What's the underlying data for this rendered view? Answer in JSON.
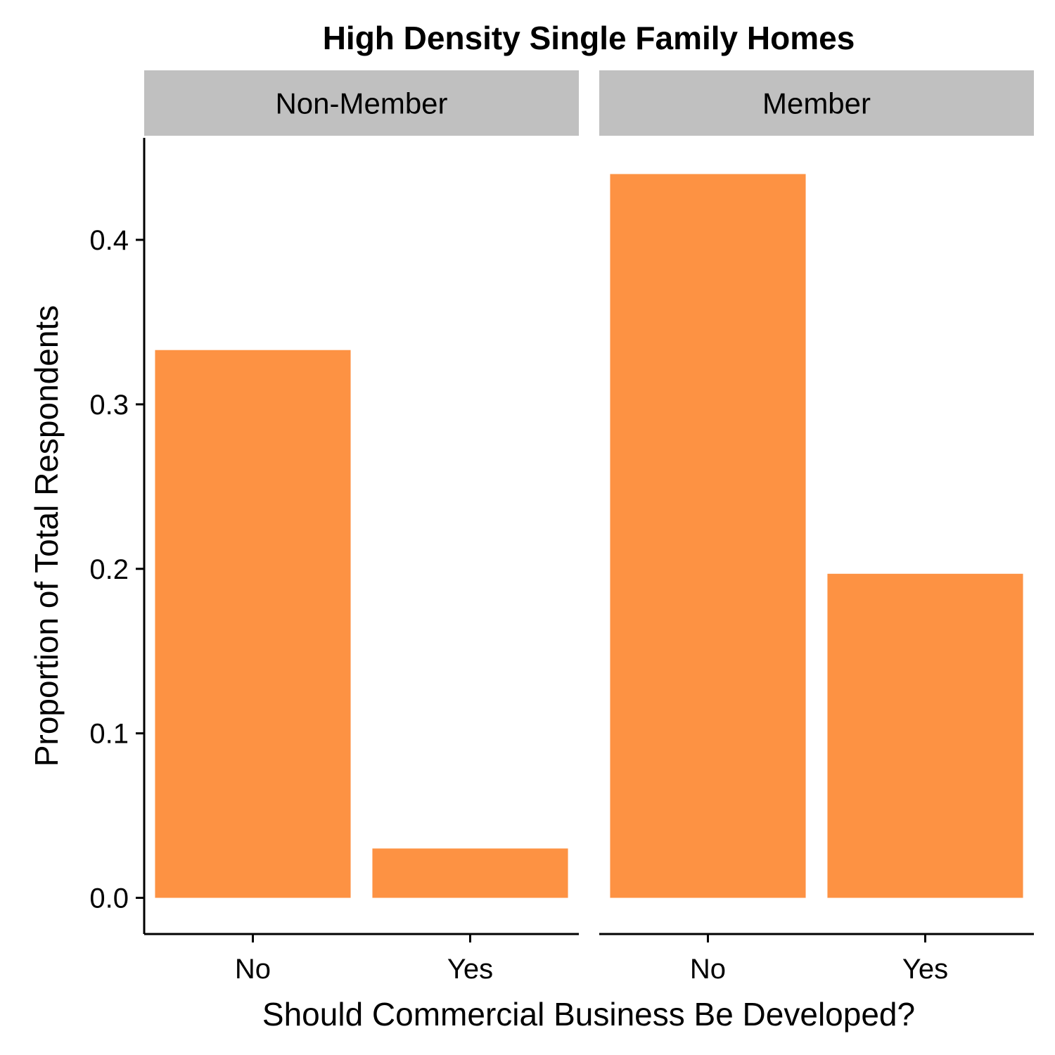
{
  "chart_data": {
    "type": "bar",
    "title": "High Density Single Family Homes",
    "xlabel": "Should Commercial Business Be Developed?",
    "ylabel": "Proportion of Total Respondents",
    "categories": [
      "No",
      "Yes"
    ],
    "facets": [
      {
        "name": "Non-Member",
        "values": [
          0.333,
          0.03
        ]
      },
      {
        "name": "Member",
        "values": [
          0.44,
          0.197
        ]
      }
    ],
    "ylim": [
      -0.022,
      0.462
    ],
    "yticks": [
      0.0,
      0.1,
      0.2,
      0.3,
      0.4
    ],
    "ytick_labels": [
      "0.0",
      "0.1",
      "0.2",
      "0.3",
      "0.4"
    ],
    "grid": false,
    "legend": "none"
  },
  "colors": {
    "bar": "#fd9243",
    "strip": "#c0c0c0",
    "axis": "#000000"
  }
}
